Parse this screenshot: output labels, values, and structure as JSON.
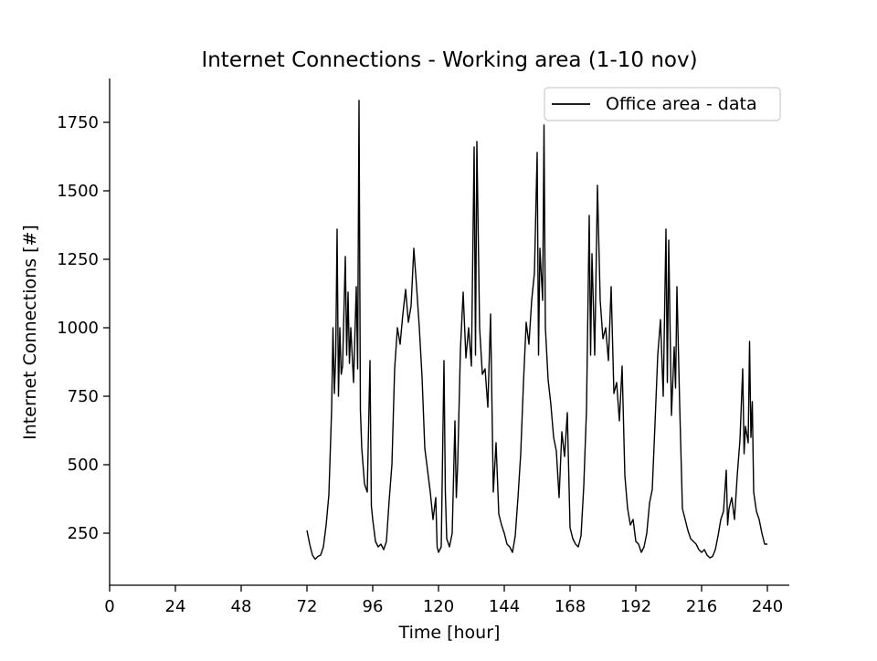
{
  "chart_data": {
    "type": "line",
    "title": "Internet Connections - Working area (1-10 nov)",
    "xlabel": "Time [hour]",
    "ylabel": "Internet Connections [#]",
    "xlim": [
      0,
      248
    ],
    "ylim": [
      60,
      1910
    ],
    "xticks": [
      0,
      24,
      48,
      72,
      96,
      120,
      144,
      168,
      192,
      216,
      240
    ],
    "xtick_labels": [
      "0",
      "24",
      "48",
      "72",
      "96",
      "120",
      "144",
      "168",
      "192",
      "216",
      "240"
    ],
    "yticks": [
      250,
      500,
      750,
      1000,
      1250,
      1500,
      1750
    ],
    "ytick_labels": [
      "250",
      "500",
      "750",
      "1000",
      "1250",
      "1500",
      "1750"
    ],
    "grid": false,
    "legend_position": "top-right",
    "series_color": "#000000",
    "series": [
      {
        "name": "Office area - data",
        "points": [
          [
            72,
            260
          ],
          [
            73,
            210
          ],
          [
            74,
            170
          ],
          [
            75,
            155
          ],
          [
            76,
            165
          ],
          [
            77,
            170
          ],
          [
            78,
            200
          ],
          [
            79,
            280
          ],
          [
            80,
            390
          ],
          [
            81,
            700
          ],
          [
            81.5,
            1000
          ],
          [
            82,
            760
          ],
          [
            82.5,
            900
          ],
          [
            83,
            1360
          ],
          [
            83.5,
            750
          ],
          [
            84,
            1000
          ],
          [
            84.5,
            830
          ],
          [
            85,
            860
          ],
          [
            86,
            1260
          ],
          [
            86.5,
            900
          ],
          [
            87,
            1130
          ],
          [
            87.5,
            870
          ],
          [
            88,
            1000
          ],
          [
            89,
            800
          ],
          [
            90,
            1150
          ],
          [
            90.5,
            850
          ],
          [
            91,
            1830
          ],
          [
            91.5,
            700
          ],
          [
            92,
            560
          ],
          [
            93,
            430
          ],
          [
            94,
            400
          ],
          [
            95,
            880
          ],
          [
            95.5,
            350
          ],
          [
            96,
            300
          ],
          [
            97,
            220
          ],
          [
            98,
            200
          ],
          [
            99,
            210
          ],
          [
            100,
            190
          ],
          [
            101,
            220
          ],
          [
            102,
            370
          ],
          [
            103,
            500
          ],
          [
            104,
            850
          ],
          [
            105,
            1000
          ],
          [
            106,
            940
          ],
          [
            107,
            1050
          ],
          [
            108,
            1140
          ],
          [
            109,
            1020
          ],
          [
            110,
            1080
          ],
          [
            111,
            1290
          ],
          [
            112,
            1150
          ],
          [
            113,
            1000
          ],
          [
            114,
            820
          ],
          [
            115,
            560
          ],
          [
            116,
            480
          ],
          [
            117,
            400
          ],
          [
            118,
            300
          ],
          [
            119,
            380
          ],
          [
            119.5,
            200
          ],
          [
            120,
            180
          ],
          [
            121,
            200
          ],
          [
            122,
            880
          ],
          [
            122.5,
            400
          ],
          [
            123,
            230
          ],
          [
            124,
            200
          ],
          [
            125,
            250
          ],
          [
            126,
            660
          ],
          [
            126.5,
            380
          ],
          [
            127,
            500
          ],
          [
            128,
            920
          ],
          [
            129,
            1130
          ],
          [
            130,
            890
          ],
          [
            131,
            1000
          ],
          [
            132,
            860
          ],
          [
            133,
            1660
          ],
          [
            133.5,
            900
          ],
          [
            134,
            1680
          ],
          [
            135,
            1000
          ],
          [
            136,
            830
          ],
          [
            137,
            850
          ],
          [
            138,
            710
          ],
          [
            139,
            1050
          ],
          [
            140,
            400
          ],
          [
            141,
            580
          ],
          [
            142,
            320
          ],
          [
            143,
            280
          ],
          [
            144,
            250
          ],
          [
            145,
            210
          ],
          [
            146,
            200
          ],
          [
            147,
            180
          ],
          [
            148,
            240
          ],
          [
            149,
            380
          ],
          [
            150,
            540
          ],
          [
            151,
            800
          ],
          [
            152,
            1020
          ],
          [
            153,
            940
          ],
          [
            154,
            1100
          ],
          [
            155,
            1200
          ],
          [
            156,
            1640
          ],
          [
            156.5,
            900
          ],
          [
            157,
            1290
          ],
          [
            158,
            1100
          ],
          [
            158.5,
            1740
          ],
          [
            159,
            1000
          ],
          [
            160,
            810
          ],
          [
            161,
            720
          ],
          [
            162,
            600
          ],
          [
            163,
            550
          ],
          [
            164,
            380
          ],
          [
            165,
            620
          ],
          [
            166,
            530
          ],
          [
            167,
            690
          ],
          [
            168,
            270
          ],
          [
            169,
            230
          ],
          [
            170,
            210
          ],
          [
            171,
            200
          ],
          [
            172,
            240
          ],
          [
            173,
            420
          ],
          [
            174,
            700
          ],
          [
            175,
            1410
          ],
          [
            175.5,
            900
          ],
          [
            176,
            1270
          ],
          [
            177,
            900
          ],
          [
            178,
            1520
          ],
          [
            179,
            1100
          ],
          [
            180,
            960
          ],
          [
            181,
            1000
          ],
          [
            182,
            880
          ],
          [
            183,
            1150
          ],
          [
            184,
            760
          ],
          [
            185,
            800
          ],
          [
            186,
            660
          ],
          [
            187,
            860
          ],
          [
            188,
            460
          ],
          [
            189,
            340
          ],
          [
            190,
            280
          ],
          [
            191,
            300
          ],
          [
            192,
            220
          ],
          [
            193,
            210
          ],
          [
            194,
            180
          ],
          [
            195,
            200
          ],
          [
            196,
            250
          ],
          [
            197,
            360
          ],
          [
            198,
            410
          ],
          [
            199,
            650
          ],
          [
            200,
            900
          ],
          [
            201,
            1030
          ],
          [
            202,
            750
          ],
          [
            203,
            1360
          ],
          [
            203.5,
            800
          ],
          [
            204,
            1320
          ],
          [
            205,
            680
          ],
          [
            206,
            930
          ],
          [
            206.5,
            780
          ],
          [
            207,
            1150
          ],
          [
            208,
            720
          ],
          [
            209,
            340
          ],
          [
            210,
            300
          ],
          [
            211,
            260
          ],
          [
            212,
            230
          ],
          [
            213,
            220
          ],
          [
            214,
            210
          ],
          [
            215,
            190
          ],
          [
            216,
            180
          ],
          [
            217,
            190
          ],
          [
            218,
            170
          ],
          [
            219,
            160
          ],
          [
            220,
            165
          ],
          [
            221,
            190
          ],
          [
            222,
            240
          ],
          [
            223,
            300
          ],
          [
            224,
            330
          ],
          [
            225,
            480
          ],
          [
            225.5,
            280
          ],
          [
            226,
            340
          ],
          [
            227,
            380
          ],
          [
            228,
            300
          ],
          [
            229,
            460
          ],
          [
            230,
            590
          ],
          [
            231,
            850
          ],
          [
            231.5,
            540
          ],
          [
            232,
            640
          ],
          [
            233,
            580
          ],
          [
            233.5,
            950
          ],
          [
            234,
            600
          ],
          [
            234.5,
            730
          ],
          [
            235,
            400
          ],
          [
            236,
            330
          ],
          [
            237,
            300
          ],
          [
            238,
            250
          ],
          [
            239,
            210
          ],
          [
            240,
            210
          ]
        ]
      }
    ]
  }
}
